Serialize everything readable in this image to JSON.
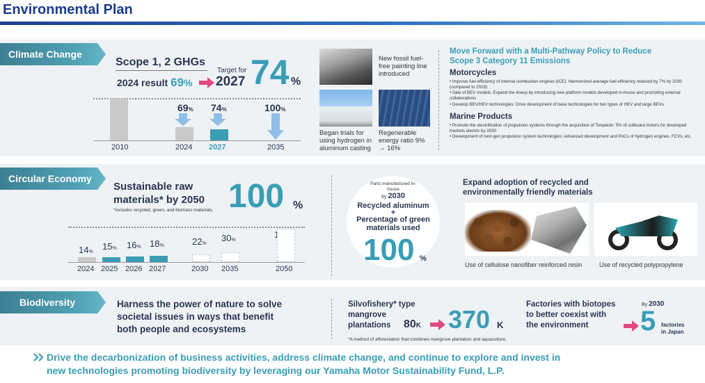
{
  "header": {
    "title": "Environmental Plan"
  },
  "climate": {
    "tab": "Climate Change",
    "heading": "Scope 1, 2 GHGs",
    "result_label": "2024 result",
    "result_value": "69",
    "result_unit": "%",
    "target_for": "Target for",
    "target_year": "2027",
    "target_value": "74",
    "target_unit": "%",
    "chart_data": {
      "type": "bar",
      "categories": [
        "2010",
        "2024",
        "2027",
        "2035"
      ],
      "labels": [
        "",
        "69%",
        "74%",
        "100%"
      ],
      "values": [
        100,
        31,
        26,
        0
      ],
      "highlight": "2027"
    },
    "bars": [
      {
        "year": "2010",
        "pct": ""
      },
      {
        "year": "2024",
        "pct": "69",
        "unit": "%"
      },
      {
        "year": "2027",
        "pct": "74",
        "unit": "%"
      },
      {
        "year": "2035",
        "pct": "100",
        "unit": "%"
      }
    ],
    "photo1_caption": "New fossil fuel-free painting line introduced",
    "photo2_caption": "Began trials for using hydrogen in aluminum casting",
    "photo3_caption": "Regenerable energy ratio 9% → 16%",
    "right_title_1": "Move Forward with a Multi-Pathway Policy to Reduce",
    "right_title_2": "Scope 3 Category 11 Emissions",
    "motorcycles_heading": "Motorcycles",
    "moto_items": [
      "Improve fuel efficiency of internal combustion engines (ICE): Harmonized average fuel efficiency reduced by 7% by 2030 (compared to 2019)",
      "Sale of BEV models: Expand the lineup by introducing new platform models developed in-house and promoting external collaborations",
      "Develop BEV/HEV technologies: Drive development of base technologies for two types of HEV and large BEVs"
    ],
    "marine_heading": "Marine Products",
    "marine_items": [
      "Promote the electrification of propulsion systems through the acquisition of Torqeedo: 5% of outboard motors for developed markets electric by 2030",
      "Development of next-gen propulsion system technologies: Advanced development and PoCs of hydrogen engines, FCVs, etc."
    ]
  },
  "circular": {
    "tab": "Circular Economy",
    "heading_1": "Sustainable raw",
    "heading_2": "materials* by 2050",
    "big_value": "100",
    "big_unit": "%",
    "footnote": "*Includes recycled, green, and biomass materials.",
    "chart_data": {
      "type": "bar",
      "categories": [
        "2024",
        "2025",
        "2026",
        "2027",
        "2030",
        "2035",
        "2050"
      ],
      "values": [
        14,
        15,
        16,
        18,
        22,
        30,
        100
      ]
    },
    "bars": [
      {
        "year": "2024",
        "pct": "14",
        "unit": "%"
      },
      {
        "year": "2025",
        "pct": "15",
        "unit": "%"
      },
      {
        "year": "2026",
        "pct": "16",
        "unit": "%"
      },
      {
        "year": "2027",
        "pct": "18",
        "unit": "%"
      },
      {
        "year": "2030",
        "pct": "22",
        "unit": "%"
      },
      {
        "year": "2035",
        "pct": "30",
        "unit": "%"
      },
      {
        "year": "2050",
        "pct": "100",
        "unit": "%"
      }
    ],
    "circle_line1": "Parts manufactured in-house",
    "circle_by": "by",
    "circle_year": "2030",
    "circle_line2": "Recycled aluminum",
    "circle_plus": "+",
    "circle_line3": "Percentage of green materials used",
    "circle_value": "100",
    "circle_unit": "%",
    "expand_title_1": "Expand adoption of recycled and",
    "expand_title_2": "environmentally friendly materials",
    "caption_left": "Use of cellulose nanofiber reinforced resin",
    "caption_right": "Use of recycled polypropylene"
  },
  "biodiversity": {
    "tab": "Biodiversity",
    "text_1": "Harness the power of nature to solve",
    "text_2": "societal issues in ways that benefit",
    "text_3": "both people and ecosystems",
    "silvo_1": "Silvofishery* type",
    "silvo_2": "mangrove",
    "silvo_3": "plantations",
    "from_value": "80",
    "from_unit": "K",
    "to_value": "370",
    "to_unit": "K",
    "silvo_footnote": "*A method of afforestation that combines mangrove plantation and aquaculture.",
    "factories_1": "Factories with biotopes",
    "factories_2": "to better coexist with",
    "factories_3": "the environment",
    "by_label": "By",
    "by_year": "2030",
    "factories_value": "5",
    "factories_unit_1": "factories",
    "factories_unit_2": "in Japan"
  },
  "footer": {
    "line1": "Drive the decarbonization of business activities, address climate change, and continue to explore and invest in",
    "line2": "new technologies promoting biodiversity by leveraging our Yamaha Motor Sustainability Fund, L.P."
  },
  "colors": {
    "navy": "#1a3c8c",
    "teal": "#3a9db6",
    "pink": "#e2477f",
    "panel": "#eef2f5",
    "gray_bar": "#c9c9c9"
  }
}
